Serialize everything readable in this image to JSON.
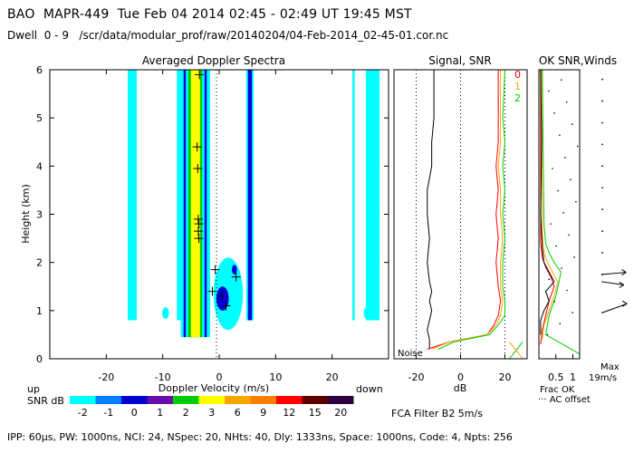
{
  "header": {
    "line1": "BAO  MAPR-449  Tue Feb 04 2014 02:45 - 02:49 UT 19:45 MST",
    "line2": "Dwell  0 - 9   /scr/data/modular_prof/raw/20140204/04-Feb-2014_02-45-01.cor.nc"
  },
  "footer": "IPP: 60µs, PW: 1000ns, NCI: 24, NSpec: 20, NHts: 40, Dly: 1333ns, Space: 1000ns, Code: 4, Npts: 256",
  "chart_data": [
    {
      "type": "heatmap",
      "title": "Averaged Doppler Spectra",
      "xlabel": "Doppler Velocity (m/s)",
      "ylabel": "Height (km)",
      "xlim": [
        -30,
        30
      ],
      "ylim": [
        0,
        6
      ],
      "xticks": [
        -20,
        -10,
        0,
        10,
        20
      ],
      "yticks": [
        0,
        1,
        2,
        3,
        4,
        5,
        6
      ],
      "left_note": "up",
      "right_note": "down",
      "colorbar": {
        "label": "SNR dB",
        "ticks": [
          "-2",
          "-1",
          "0",
          "1",
          "2",
          "3",
          "6",
          "9",
          "12",
          "15",
          "20"
        ],
        "colors": [
          "#00ffff",
          "#0080ff",
          "#0000cc",
          "#6a0dad",
          "#00cc00",
          "#ffff00",
          "#ffa500",
          "#ff7f00",
          "#ff0000",
          "#5a0000",
          "#2d0040"
        ]
      },
      "bands": [
        {
          "x0": -16.2,
          "x1": -14.6,
          "y0": 0.8,
          "y1": 6,
          "color": "#00ffff"
        },
        {
          "x0": -7.5,
          "x1": -6.8,
          "y0": 0.8,
          "y1": 6,
          "color": "#00ffff"
        },
        {
          "x0": -6.8,
          "x1": -1.6,
          "y0": 0.45,
          "y1": 6,
          "color": "#00ffff"
        },
        {
          "x0": -6.3,
          "x1": -2.2,
          "y0": 0.45,
          "y1": 6,
          "color": "#0000dd"
        },
        {
          "x0": -5.9,
          "x1": -2.6,
          "y0": 0.45,
          "y1": 6,
          "color": "#00ffff"
        },
        {
          "x0": -5.5,
          "x1": -3.0,
          "y0": 0.45,
          "y1": 6,
          "color": "#00cc00"
        },
        {
          "x0": -5.0,
          "x1": -3.4,
          "y0": 0.45,
          "y1": 6,
          "color": "#ffff00"
        },
        {
          "x0": 4.8,
          "x1": 6.1,
          "y0": 0.8,
          "y1": 6,
          "color": "#00ffff"
        },
        {
          "x0": 5.1,
          "x1": 5.8,
          "y0": 0.8,
          "y1": 6,
          "color": "#0000dd"
        },
        {
          "x0": 23.6,
          "x1": 24.0,
          "y0": 0.8,
          "y1": 6,
          "color": "#00ffff"
        },
        {
          "x0": 26.0,
          "x1": 28.4,
          "y0": 0.8,
          "y1": 6,
          "color": "#00ffff"
        }
      ],
      "blobs": [
        {
          "cx": 1.6,
          "cy": 1.35,
          "rx": 2.6,
          "ry": 0.75,
          "color": "#00ffff"
        },
        {
          "cx": 0.6,
          "cy": 1.25,
          "rx": 1.1,
          "ry": 0.25,
          "color": "#0000dd"
        },
        {
          "cx": 2.7,
          "cy": 1.85,
          "rx": 0.45,
          "ry": 0.1,
          "color": "#0000dd"
        },
        {
          "cx": -9.5,
          "cy": 0.95,
          "rx": 0.6,
          "ry": 0.12,
          "color": "#00ffff"
        },
        {
          "cx": 26.5,
          "cy": 0.95,
          "rx": 0.9,
          "ry": 0.15,
          "color": "#00ffff"
        }
      ],
      "markers": [
        {
          "x": -3.5,
          "y": 5.9
        },
        {
          "x": -3.9,
          "y": 4.4
        },
        {
          "x": -3.8,
          "y": 3.95
        },
        {
          "x": -3.7,
          "y": 2.9
        },
        {
          "x": -3.6,
          "y": 2.8
        },
        {
          "x": -3.7,
          "y": 2.65
        },
        {
          "x": -3.6,
          "y": 2.5
        },
        {
          "x": -0.7,
          "y": 1.85
        },
        {
          "x": 3.0,
          "y": 1.7
        },
        {
          "x": -1.2,
          "y": 1.4
        },
        {
          "x": 0.5,
          "y": 1.3
        },
        {
          "x": 1.2,
          "y": 1.1
        }
      ],
      "zero_line_x": 0
    },
    {
      "type": "line",
      "title": "Signal, SNR",
      "xlabel": "dB",
      "xlim": [
        -30,
        30
      ],
      "ylim": [
        0,
        6
      ],
      "xticks": [
        -20,
        0,
        20
      ],
      "dotted_x": [
        -20,
        0,
        20
      ],
      "noise_label": "Noise",
      "legend": [
        "0",
        "1",
        "2"
      ],
      "series": [
        {
          "name": "Signal",
          "color": "#000000",
          "x": [
            -14,
            -14,
            -15,
            -14,
            -13,
            -14,
            -13,
            -14,
            -15,
            -14,
            -15,
            -15,
            -13,
            -13,
            -12,
            -12
          ],
          "y": [
            0.2,
            0.4,
            0.6,
            0.8,
            1.0,
            1.2,
            1.4,
            1.6,
            2.0,
            2.5,
            3.0,
            3.5,
            4.0,
            4.5,
            5.0,
            6.0
          ]
        },
        {
          "name": "0",
          "color": "#ff0000",
          "x": [
            -15,
            -5,
            12,
            15,
            17,
            18,
            17,
            16,
            17,
            16,
            17,
            16,
            17,
            17,
            17
          ],
          "y": [
            0.2,
            0.35,
            0.5,
            0.7,
            0.9,
            1.2,
            1.5,
            2.0,
            2.5,
            3.0,
            3.5,
            4.0,
            4.5,
            5.0,
            6.0
          ]
        },
        {
          "name": "1",
          "color": "#ffa500",
          "x": [
            -13,
            -5,
            12,
            16,
            18,
            19,
            18,
            18,
            19,
            18,
            18,
            17,
            18,
            18,
            18
          ],
          "y": [
            0.2,
            0.35,
            0.5,
            0.7,
            0.9,
            1.2,
            1.5,
            2.0,
            2.5,
            3.0,
            3.5,
            4.0,
            4.5,
            5.0,
            6.0
          ]
        },
        {
          "name": "2",
          "color": "#00cc00",
          "x": [
            -10,
            -3,
            13,
            17,
            20,
            20,
            19,
            19,
            20,
            19,
            20,
            19,
            20,
            19,
            20
          ],
          "y": [
            0.2,
            0.35,
            0.5,
            0.7,
            0.9,
            1.2,
            1.5,
            2.0,
            2.5,
            3.0,
            3.5,
            4.0,
            4.5,
            5.0,
            6.0
          ]
        },
        {
          "name": "noise-green",
          "color": "#00cc00",
          "x": [
            22,
            28
          ],
          "y": [
            0.0,
            0.35
          ]
        },
        {
          "name": "noise-orange",
          "color": "#ffa500",
          "x": [
            22,
            28
          ],
          "y": [
            0.35,
            0.0
          ]
        }
      ]
    },
    {
      "type": "line",
      "title": "OK SNR,Winds",
      "xlabel": "Frac OK",
      "xlabel2": "··· AC offset",
      "xlim": [
        0,
        1.2
      ],
      "ylim": [
        0,
        6
      ],
      "xticks": [
        "0.5",
        "1"
      ],
      "xtick_values": [
        0.5,
        1.0
      ],
      "max_label": "Max",
      "wind_label": "19m/s",
      "fca_label": "FCA Filter B2  5m/s",
      "series": [
        {
          "name": "0",
          "color": "#ff0000",
          "x": [
            0.05,
            0.1,
            0.2,
            0.3,
            0.45,
            0.35,
            0.2,
            0.1,
            0.05,
            0.05
          ],
          "y": [
            0.3,
            0.6,
            0.9,
            1.2,
            1.5,
            1.7,
            1.9,
            2.1,
            2.4,
            6.0
          ]
        },
        {
          "name": "1",
          "color": "#ffa500",
          "x": [
            0.1,
            0.15,
            0.3,
            0.45,
            0.55,
            0.4,
            0.25,
            0.15,
            0.1,
            0.08
          ],
          "y": [
            0.4,
            0.7,
            1.0,
            1.3,
            1.6,
            1.8,
            2.0,
            2.2,
            2.6,
            6.0
          ]
        },
        {
          "name": "2",
          "color": "#00cc00",
          "x": [
            1.2,
            0.2,
            0.3,
            0.5,
            0.65,
            0.45,
            0.3,
            0.2,
            0.15,
            0.1
          ],
          "y": [
            0.1,
            0.5,
            0.9,
            1.3,
            1.8,
            2.0,
            2.2,
            2.4,
            2.8,
            6.0
          ]
        },
        {
          "name": "ok",
          "color": "#000000",
          "x": [
            0.05,
            0.05,
            0.15,
            0.3,
            0.2,
            0.45,
            0.3,
            0.15,
            0.1,
            0.05,
            0.08,
            0.05
          ],
          "y": [
            0.5,
            0.8,
            1.0,
            1.2,
            1.4,
            1.6,
            1.8,
            2.0,
            2.3,
            3.0,
            4.5,
            6.0
          ]
        }
      ],
      "winds": [
        {
          "y": 1.75,
          "dir": 5,
          "len": 0.55
        },
        {
          "y": 1.6,
          "dir": -8,
          "len": 0.5
        },
        {
          "y": 0.95,
          "dir": 20,
          "len": 0.6
        }
      ]
    }
  ]
}
